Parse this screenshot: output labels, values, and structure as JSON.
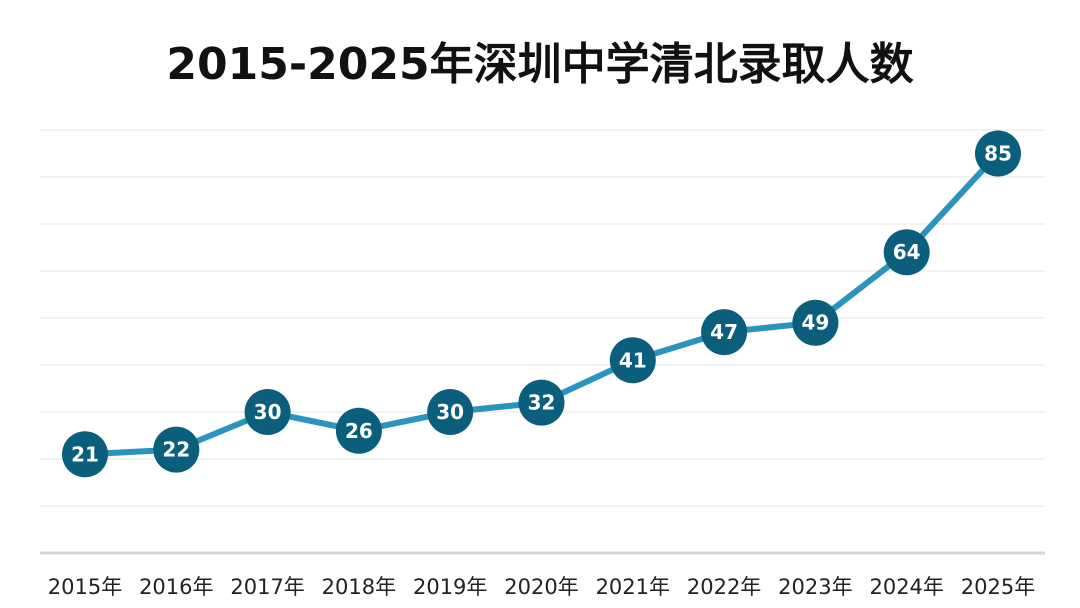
{
  "chart_data": {
    "type": "line",
    "title": "2015-2025年深圳中学清北录取人数",
    "categories": [
      "2015年",
      "2016年",
      "2017年",
      "2018年",
      "2019年",
      "2020年",
      "2021年",
      "2022年",
      "2023年",
      "2024年",
      "2025年"
    ],
    "values": [
      21,
      22,
      30,
      26,
      30,
      32,
      41,
      47,
      49,
      64,
      85
    ],
    "xlabel": "",
    "ylabel": "",
    "ylim": [
      0,
      90
    ],
    "grid": true,
    "legend": "none",
    "colors": {
      "line": "#2a94bf",
      "marker": "#0b5f7d",
      "label": "#ffffff"
    }
  }
}
